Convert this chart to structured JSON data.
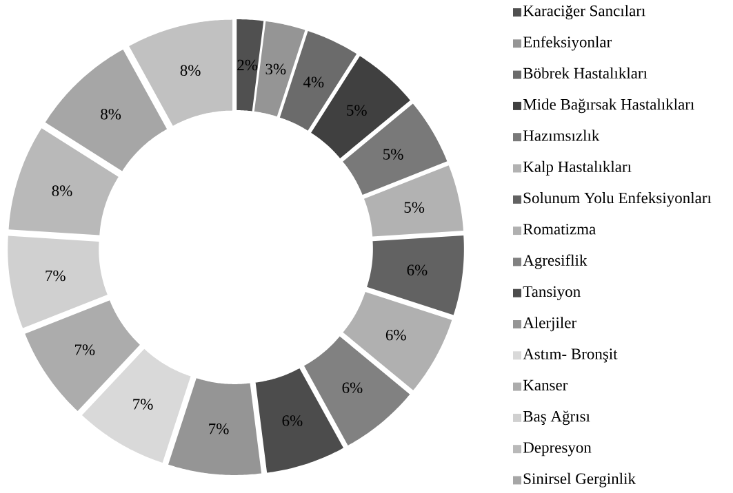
{
  "chart_data": {
    "type": "donut",
    "categories": [
      "Karaciğer Sancıları",
      "Enfeksiyonlar",
      "Böbrek Hastalıkları",
      "Mide Bağırsak Hastalıkları",
      "Hazımsızlık",
      "Kalp Hastalıkları",
      "Solunum Yolu Enfeksiyonları",
      "Romatizma",
      "Agresiflik",
      "Tansiyon",
      "Alerjiler",
      "Astım- Bronşit",
      "Kanser",
      "Baş Ağrısı",
      "Depresyon",
      "Sinirsel Gerginlik",
      null
    ],
    "values": [
      2,
      3,
      4,
      5,
      5,
      5,
      6,
      6,
      6,
      6,
      7,
      7,
      7,
      7,
      8,
      8,
      8
    ],
    "value_labels": [
      "2%",
      "3%",
      "4%",
      "5%",
      "5%",
      "5%",
      "6%",
      "6%",
      "6%",
      "6%",
      "7%",
      "7%",
      "7%",
      "7%",
      "8%",
      "8%",
      "8%"
    ],
    "colors": [
      "#505050",
      "#959595",
      "#6b6b6b",
      "#404040",
      "#797979",
      "#b2b2b2",
      "#626262",
      "#b0b0b0",
      "#818181",
      "#4c4c4c",
      "#959595",
      "#d9d9d9",
      "#acacac",
      "#d0d0d0",
      "#b9b9b9",
      "#a6a6a6",
      "#c1c1c1"
    ],
    "legend": "right"
  }
}
